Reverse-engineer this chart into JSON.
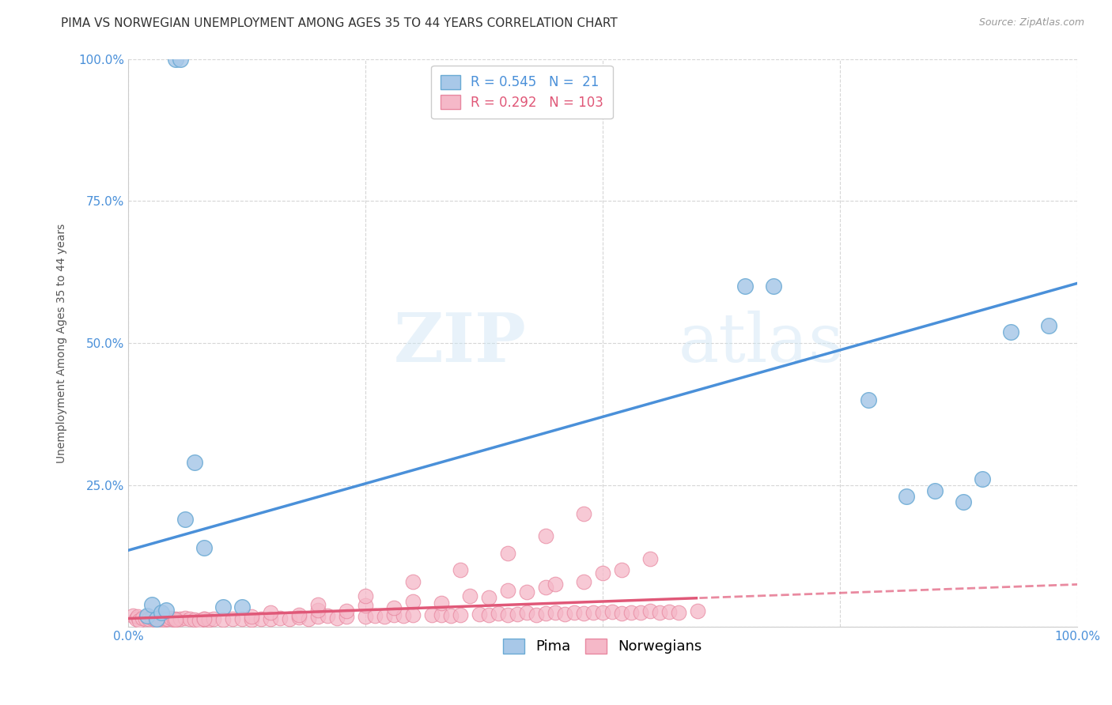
{
  "title": "PIMA VS NORWEGIAN UNEMPLOYMENT AMONG AGES 35 TO 44 YEARS CORRELATION CHART",
  "source": "Source: ZipAtlas.com",
  "ylabel": "Unemployment Among Ages 35 to 44 years",
  "xlim": [
    0,
    1
  ],
  "ylim": [
    0,
    1
  ],
  "xticks": [
    0,
    0.25,
    0.5,
    0.75,
    1.0
  ],
  "yticks": [
    0,
    0.25,
    0.5,
    0.75,
    1.0
  ],
  "xticklabels": [
    "0.0%",
    "",
    "",
    "",
    "100.0%"
  ],
  "yticklabels": [
    "",
    "25.0%",
    "50.0%",
    "75.0%",
    "100.0%"
  ],
  "pima_color": "#a8c8e8",
  "pima_edge_color": "#6aaad4",
  "norwegian_color": "#f5b8c8",
  "norwegian_edge_color": "#e888a0",
  "pima_R": 0.545,
  "pima_N": 21,
  "norwegian_R": 0.292,
  "norwegian_N": 103,
  "pima_line_color": "#4a90d9",
  "norwegian_line_color": "#e05878",
  "legend_label_pima": "Pima",
  "legend_label_norwegian": "Norwegians",
  "watermark_zip": "ZIP",
  "watermark_atlas": "atlas",
  "background_color": "#ffffff",
  "pima_x": [
    0.02,
    0.025,
    0.03,
    0.035,
    0.04,
    0.05,
    0.055,
    0.06,
    0.07,
    0.08,
    0.1,
    0.12,
    0.65,
    0.68,
    0.78,
    0.82,
    0.85,
    0.88,
    0.9,
    0.93,
    0.97
  ],
  "pima_y": [
    0.02,
    0.04,
    0.015,
    0.025,
    0.03,
    1.0,
    1.0,
    0.19,
    0.29,
    0.14,
    0.035,
    0.035,
    0.6,
    0.6,
    0.4,
    0.23,
    0.24,
    0.22,
    0.26,
    0.52,
    0.53
  ],
  "norwegian_x": [
    0.005,
    0.008,
    0.01,
    0.012,
    0.015,
    0.018,
    0.02,
    0.022,
    0.025,
    0.028,
    0.03,
    0.032,
    0.035,
    0.038,
    0.04,
    0.042,
    0.045,
    0.048,
    0.05,
    0.055,
    0.06,
    0.065,
    0.07,
    0.075,
    0.08,
    0.085,
    0.09,
    0.1,
    0.11,
    0.12,
    0.13,
    0.14,
    0.15,
    0.16,
    0.17,
    0.18,
    0.19,
    0.2,
    0.21,
    0.22,
    0.23,
    0.25,
    0.26,
    0.27,
    0.28,
    0.29,
    0.3,
    0.32,
    0.33,
    0.34,
    0.35,
    0.37,
    0.38,
    0.39,
    0.4,
    0.41,
    0.42,
    0.43,
    0.44,
    0.45,
    0.46,
    0.47,
    0.48,
    0.49,
    0.5,
    0.51,
    0.52,
    0.53,
    0.54,
    0.55,
    0.56,
    0.57,
    0.58,
    0.6,
    0.52,
    0.48,
    0.44,
    0.4,
    0.36,
    0.3,
    0.25,
    0.2,
    0.15,
    0.55,
    0.5,
    0.45,
    0.42,
    0.38,
    0.33,
    0.28,
    0.23,
    0.18,
    0.13,
    0.08,
    0.05,
    0.03,
    0.48,
    0.44,
    0.4,
    0.35,
    0.3,
    0.25,
    0.2
  ],
  "norwegian_y": [
    0.02,
    0.015,
    0.018,
    0.012,
    0.016,
    0.014,
    0.018,
    0.015,
    0.016,
    0.013,
    0.015,
    0.014,
    0.016,
    0.013,
    0.015,
    0.014,
    0.016,
    0.013,
    0.015,
    0.014,
    0.016,
    0.014,
    0.013,
    0.012,
    0.014,
    0.013,
    0.015,
    0.013,
    0.014,
    0.015,
    0.013,
    0.014,
    0.015,
    0.016,
    0.014,
    0.017,
    0.015,
    0.018,
    0.02,
    0.016,
    0.019,
    0.018,
    0.02,
    0.019,
    0.021,
    0.02,
    0.022,
    0.021,
    0.022,
    0.02,
    0.022,
    0.023,
    0.021,
    0.024,
    0.022,
    0.023,
    0.025,
    0.022,
    0.024,
    0.026,
    0.023,
    0.025,
    0.024,
    0.026,
    0.025,
    0.027,
    0.024,
    0.026,
    0.025,
    0.028,
    0.025,
    0.027,
    0.026,
    0.028,
    0.1,
    0.08,
    0.07,
    0.065,
    0.055,
    0.045,
    0.038,
    0.03,
    0.025,
    0.12,
    0.095,
    0.075,
    0.062,
    0.052,
    0.042,
    0.034,
    0.028,
    0.022,
    0.018,
    0.015,
    0.013,
    0.012,
    0.2,
    0.16,
    0.13,
    0.1,
    0.08,
    0.055,
    0.04
  ],
  "title_fontsize": 11,
  "axis_label_fontsize": 10,
  "tick_fontsize": 11,
  "legend_fontsize": 12
}
